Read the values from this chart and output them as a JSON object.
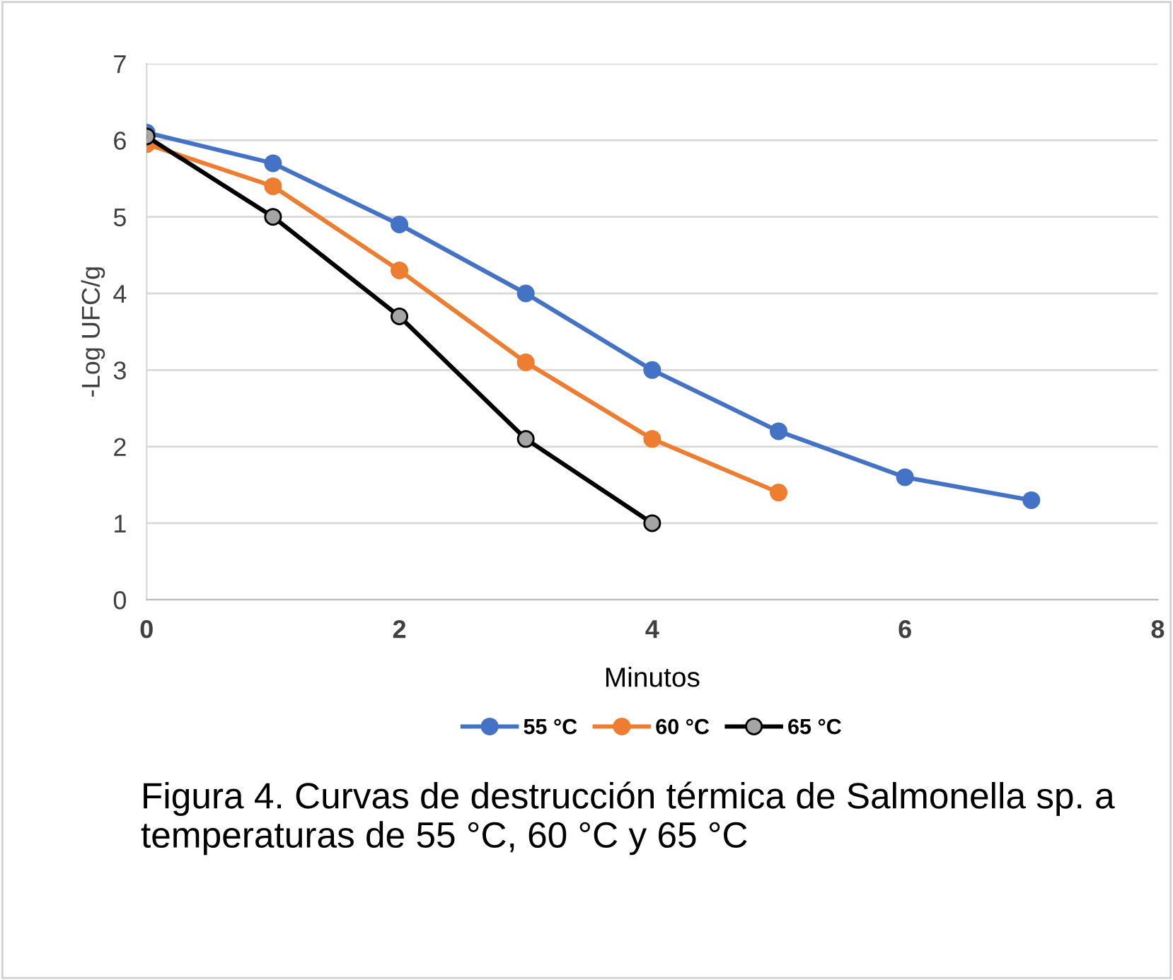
{
  "chart_data": {
    "type": "line",
    "xlabel": "Minutos",
    "ylabel": "-Log UFC/g",
    "x": [
      0,
      1,
      2,
      3,
      4,
      5,
      6,
      7
    ],
    "series": [
      {
        "name": "55 °C",
        "color": "#4472c4",
        "values": [
          6.1,
          5.7,
          4.9,
          4.0,
          3.0,
          2.2,
          1.6,
          1.3
        ]
      },
      {
        "name": "60 °C",
        "color": "#ed7d31",
        "values": [
          5.95,
          5.4,
          4.3,
          3.1,
          2.1,
          1.4,
          null,
          null
        ]
      },
      {
        "name": "65 °C",
        "color": "#000000",
        "values": [
          6.05,
          5.0,
          3.7,
          2.1,
          1.0,
          null,
          null,
          null
        ]
      }
    ],
    "xlim": [
      0,
      8
    ],
    "xticks": [
      0,
      2,
      4,
      6,
      8
    ],
    "ylim": [
      0,
      7
    ],
    "yticks": [
      0,
      1,
      2,
      3,
      4,
      5,
      6,
      7
    ],
    "grid": "y",
    "legend": "bottom",
    "marker": "circle",
    "line_style": "solid",
    "annotations": [
      "Figura 4. Curvas de destrucción térmica de Salmonella sp. a temperaturas de 55 °C, 60 °C y 65 °C"
    ]
  }
}
